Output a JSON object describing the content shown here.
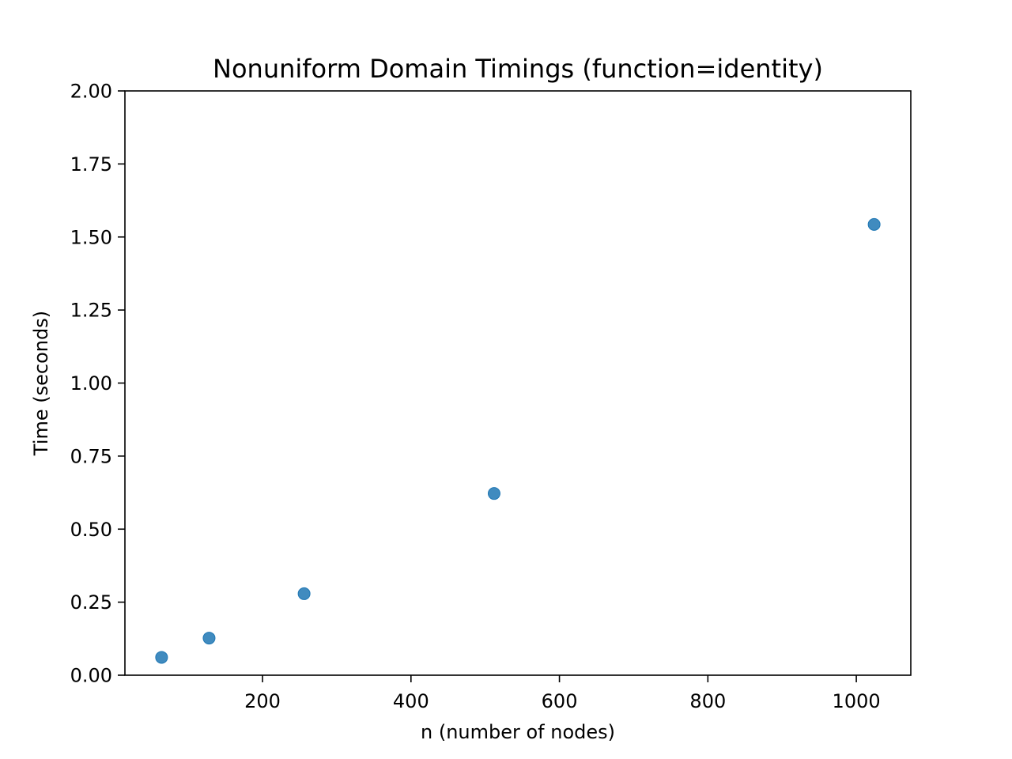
{
  "chart_data": {
    "type": "scatter",
    "title": "Nonuniform Domain Timings (function=identity)",
    "xlabel": "n (number of nodes)",
    "ylabel": "Time (seconds)",
    "xlim": [
      14.6,
      1073.4
    ],
    "ylim": [
      0,
      2
    ],
    "xticks": [
      200,
      400,
      600,
      800,
      1000
    ],
    "xtick_labels": [
      "200",
      "400",
      "600",
      "800",
      "1000"
    ],
    "yticks": [
      0,
      0.25,
      0.5,
      0.75,
      1.0,
      1.25,
      1.5,
      1.75,
      2.0
    ],
    "ytick_labels": [
      "0.00",
      "0.25",
      "0.50",
      "0.75",
      "1.00",
      "1.25",
      "1.50",
      "1.75",
      "2.00"
    ],
    "grid": false,
    "series": [
      {
        "name": "timings",
        "color": "#1f77b4",
        "x": [
          64,
          128,
          256,
          512,
          1024
        ],
        "y": [
          0.061,
          0.127,
          0.279,
          0.622,
          1.543
        ]
      }
    ]
  }
}
